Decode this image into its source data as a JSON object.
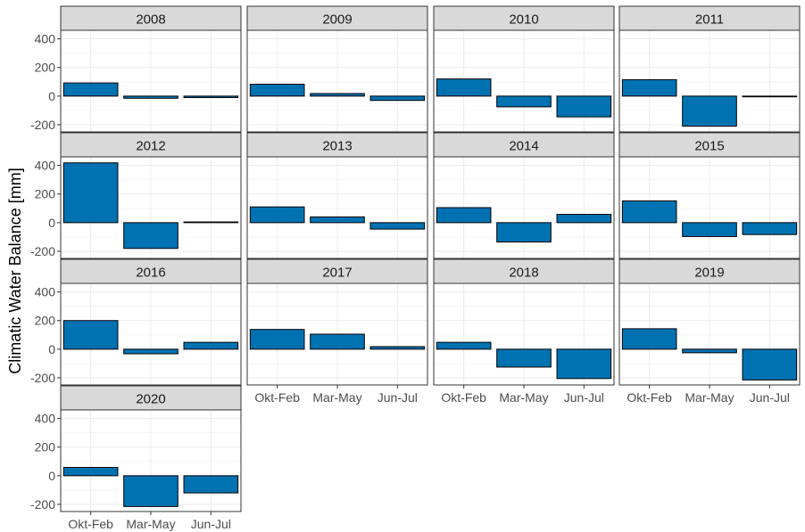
{
  "chart_data": {
    "type": "bar",
    "layout": "facet-wrap",
    "ylabel": "Climatic Water Balance [mm]",
    "xlabel": "",
    "ylim": [
      -250,
      460
    ],
    "yticks": [
      -200,
      0,
      200,
      400
    ],
    "categories": [
      "Okt-Feb",
      "Mar-May",
      "Jun-Jul"
    ],
    "bar_color": "#0072B2",
    "strip_color": "#D9D9D9",
    "grid": true,
    "panels": [
      {
        "title": "2008",
        "values": [
          92,
          -15,
          -10
        ]
      },
      {
        "title": "2009",
        "values": [
          83,
          18,
          -30
        ]
      },
      {
        "title": "2010",
        "values": [
          120,
          -75,
          -145
        ]
      },
      {
        "title": "2011",
        "values": [
          115,
          -210,
          -2
        ]
      },
      {
        "title": "2012",
        "values": [
          418,
          -180,
          5
        ]
      },
      {
        "title": "2013",
        "values": [
          110,
          40,
          -45
        ]
      },
      {
        "title": "2014",
        "values": [
          105,
          -135,
          58
        ]
      },
      {
        "title": "2015",
        "values": [
          152,
          -97,
          -83
        ]
      },
      {
        "title": "2016",
        "values": [
          200,
          -32,
          48
        ]
      },
      {
        "title": "2017",
        "values": [
          138,
          105,
          18
        ]
      },
      {
        "title": "2018",
        "values": [
          48,
          -125,
          -205
        ]
      },
      {
        "title": "2019",
        "values": [
          143,
          -25,
          -215
        ]
      },
      {
        "title": "2020",
        "values": [
          58,
          -215,
          -120
        ]
      }
    ]
  }
}
